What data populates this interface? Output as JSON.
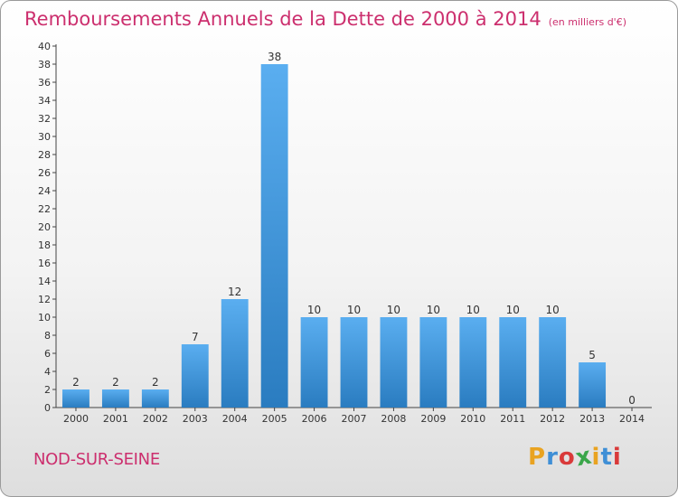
{
  "header": {
    "title": "Remboursements Annuels de la Dette de 2000 à 2014",
    "unit": "(en milliers d'€)"
  },
  "footer": {
    "commune": "NOD-SUR-SEINE",
    "logo_letters": [
      "P",
      "r",
      "o",
      "x",
      "i",
      "t",
      "i"
    ],
    "logo_colors": [
      "#e9a321",
      "#3f8fd6",
      "#d93a3a",
      "#3aa64a",
      "#e9a321",
      "#3f8fd6",
      "#d93a3a"
    ]
  },
  "chart_data": {
    "type": "bar",
    "categories": [
      "2000",
      "2001",
      "2002",
      "2003",
      "2004",
      "2005",
      "2006",
      "2007",
      "2008",
      "2009",
      "2010",
      "2011",
      "2012",
      "2013",
      "2014"
    ],
    "values": [
      2,
      2,
      2,
      7,
      12,
      38,
      10,
      10,
      10,
      10,
      10,
      10,
      10,
      5,
      0
    ],
    "title": "Remboursements Annuels de la Dette de 2000 à 2014",
    "ylim": [
      0,
      40
    ],
    "yticks": [
      0,
      2,
      4,
      6,
      8,
      10,
      12,
      14,
      16,
      18,
      20,
      22,
      24,
      26,
      28,
      30,
      32,
      34,
      36,
      38,
      40
    ],
    "grid": false,
    "bar_color": "#3a8fd4"
  }
}
